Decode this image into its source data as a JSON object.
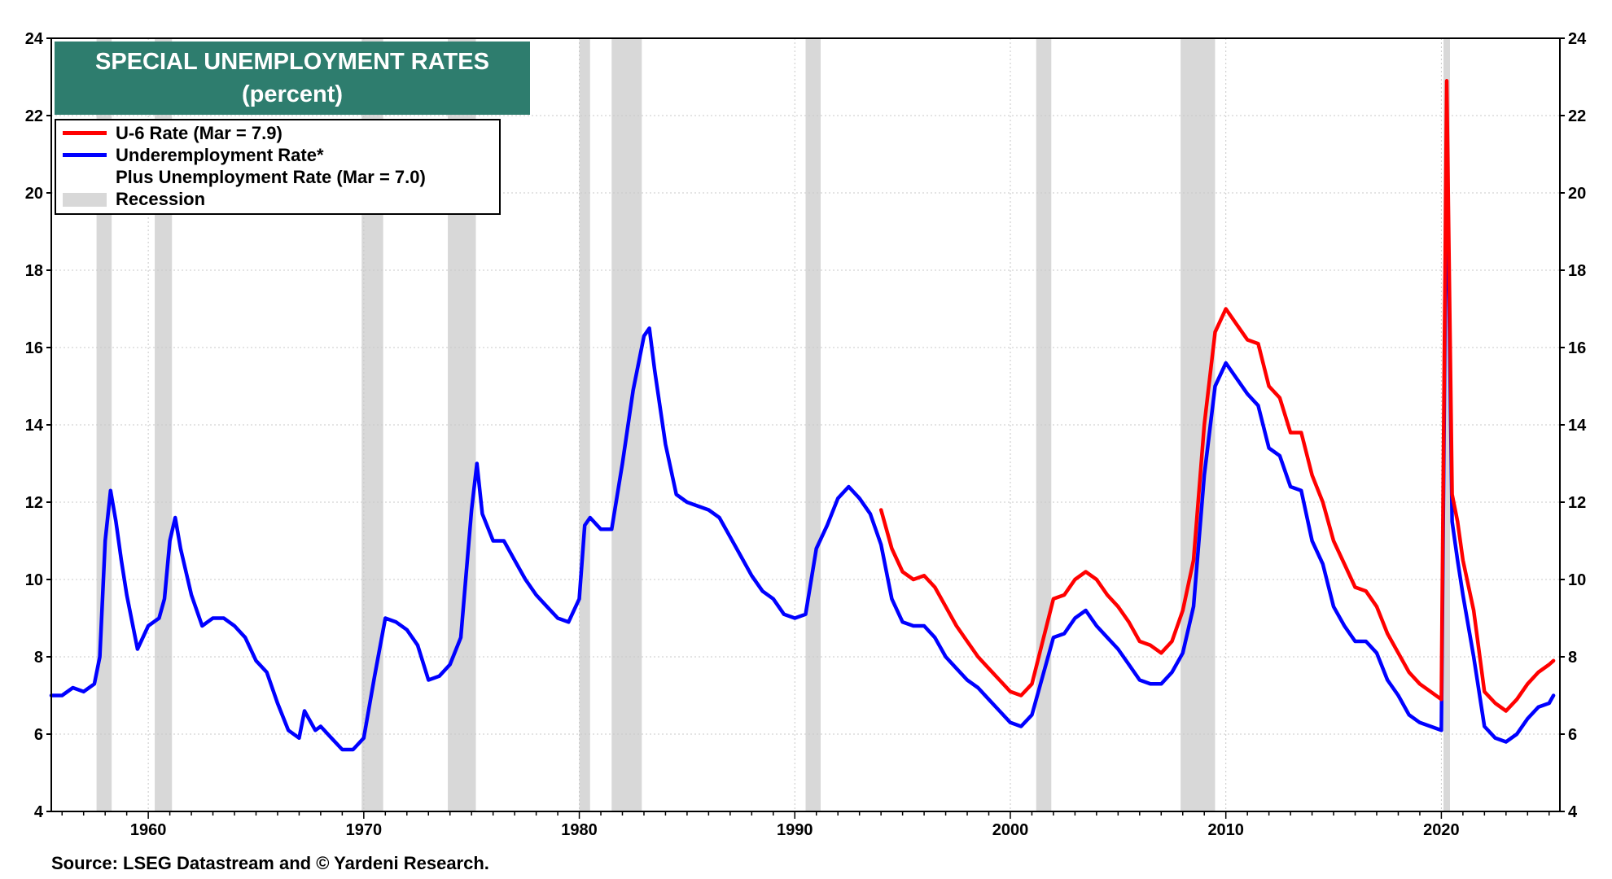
{
  "chart_data": {
    "type": "line",
    "title": "SPECIAL UNEMPLOYMENT RATES",
    "subtitle": "(percent)",
    "ylim": [
      4,
      24
    ],
    "xlim": [
      1955.5,
      2025.5
    ],
    "y_ticks": [
      "4",
      "6",
      "8",
      "10",
      "12",
      "14",
      "16",
      "18",
      "20",
      "22",
      "24"
    ],
    "x_ticks": [
      "1960",
      "1970",
      "1980",
      "1990",
      "2000",
      "2010",
      "2020"
    ],
    "grid": true,
    "legend_position": "top-left",
    "series": [
      {
        "name": "U-6 Rate (Mar = 7.9)",
        "color": "#ff0000",
        "points": [
          [
            1994.0,
            11.8
          ],
          [
            1994.5,
            10.8
          ],
          [
            1995.0,
            10.2
          ],
          [
            1995.5,
            10.0
          ],
          [
            1996.0,
            10.1
          ],
          [
            1996.5,
            9.8
          ],
          [
            1997.0,
            9.3
          ],
          [
            1997.5,
            8.8
          ],
          [
            1998.0,
            8.4
          ],
          [
            1998.5,
            8.0
          ],
          [
            1999.0,
            7.7
          ],
          [
            1999.5,
            7.4
          ],
          [
            2000.0,
            7.1
          ],
          [
            2000.5,
            7.0
          ],
          [
            2001.0,
            7.3
          ],
          [
            2001.5,
            8.4
          ],
          [
            2002.0,
            9.5
          ],
          [
            2002.5,
            9.6
          ],
          [
            2003.0,
            10.0
          ],
          [
            2003.5,
            10.2
          ],
          [
            2004.0,
            10.0
          ],
          [
            2004.5,
            9.6
          ],
          [
            2005.0,
            9.3
          ],
          [
            2005.5,
            8.9
          ],
          [
            2006.0,
            8.4
          ],
          [
            2006.5,
            8.3
          ],
          [
            2007.0,
            8.1
          ],
          [
            2007.5,
            8.4
          ],
          [
            2008.0,
            9.2
          ],
          [
            2008.5,
            10.5
          ],
          [
            2009.0,
            14.0
          ],
          [
            2009.5,
            16.4
          ],
          [
            2010.0,
            17.0
          ],
          [
            2010.5,
            16.6
          ],
          [
            2011.0,
            16.2
          ],
          [
            2011.5,
            16.1
          ],
          [
            2012.0,
            15.0
          ],
          [
            2012.5,
            14.7
          ],
          [
            2013.0,
            13.8
          ],
          [
            2013.5,
            13.8
          ],
          [
            2014.0,
            12.7
          ],
          [
            2014.5,
            12.0
          ],
          [
            2015.0,
            11.0
          ],
          [
            2015.5,
            10.4
          ],
          [
            2016.0,
            9.8
          ],
          [
            2016.5,
            9.7
          ],
          [
            2017.0,
            9.3
          ],
          [
            2017.5,
            8.6
          ],
          [
            2018.0,
            8.1
          ],
          [
            2018.5,
            7.6
          ],
          [
            2019.0,
            7.3
          ],
          [
            2019.5,
            7.1
          ],
          [
            2020.0,
            6.9
          ],
          [
            2020.25,
            22.9
          ],
          [
            2020.5,
            12.2
          ],
          [
            2020.75,
            11.5
          ],
          [
            2021.0,
            10.5
          ],
          [
            2021.5,
            9.2
          ],
          [
            2022.0,
            7.1
          ],
          [
            2022.5,
            6.8
          ],
          [
            2023.0,
            6.6
          ],
          [
            2023.5,
            6.9
          ],
          [
            2024.0,
            7.3
          ],
          [
            2024.5,
            7.6
          ],
          [
            2025.0,
            7.8
          ],
          [
            2025.2,
            7.9
          ]
        ]
      },
      {
        "name": "Underemployment Rate*",
        "color": "#0000ff",
        "points": [
          [
            1955.5,
            7.0
          ],
          [
            1956.0,
            7.0
          ],
          [
            1956.5,
            7.2
          ],
          [
            1957.0,
            7.1
          ],
          [
            1957.5,
            7.3
          ],
          [
            1957.75,
            8.0
          ],
          [
            1958.0,
            11.0
          ],
          [
            1958.25,
            12.3
          ],
          [
            1958.5,
            11.5
          ],
          [
            1958.75,
            10.5
          ],
          [
            1959.0,
            9.6
          ],
          [
            1959.5,
            8.2
          ],
          [
            1960.0,
            8.8
          ],
          [
            1960.5,
            9.0
          ],
          [
            1960.75,
            9.5
          ],
          [
            1961.0,
            11.0
          ],
          [
            1961.25,
            11.6
          ],
          [
            1961.5,
            10.8
          ],
          [
            1962.0,
            9.6
          ],
          [
            1962.5,
            8.8
          ],
          [
            1963.0,
            9.0
          ],
          [
            1963.5,
            9.0
          ],
          [
            1964.0,
            8.8
          ],
          [
            1964.5,
            8.5
          ],
          [
            1965.0,
            7.9
          ],
          [
            1965.5,
            7.6
          ],
          [
            1966.0,
            6.8
          ],
          [
            1966.5,
            6.1
          ],
          [
            1967.0,
            5.9
          ],
          [
            1967.25,
            6.6
          ],
          [
            1967.75,
            6.1
          ],
          [
            1968.0,
            6.2
          ],
          [
            1968.5,
            5.9
          ],
          [
            1969.0,
            5.6
          ],
          [
            1969.5,
            5.6
          ],
          [
            1970.0,
            5.9
          ],
          [
            1970.5,
            7.5
          ],
          [
            1971.0,
            9.0
          ],
          [
            1971.5,
            8.9
          ],
          [
            1972.0,
            8.7
          ],
          [
            1972.5,
            8.3
          ],
          [
            1973.0,
            7.4
          ],
          [
            1973.5,
            7.5
          ],
          [
            1974.0,
            7.8
          ],
          [
            1974.5,
            8.5
          ],
          [
            1975.0,
            11.8
          ],
          [
            1975.25,
            13.0
          ],
          [
            1975.5,
            11.7
          ],
          [
            1976.0,
            11.0
          ],
          [
            1976.5,
            11.0
          ],
          [
            1977.0,
            10.5
          ],
          [
            1977.5,
            10.0
          ],
          [
            1978.0,
            9.6
          ],
          [
            1978.5,
            9.3
          ],
          [
            1979.0,
            9.0
          ],
          [
            1979.5,
            8.9
          ],
          [
            1980.0,
            9.5
          ],
          [
            1980.25,
            11.4
          ],
          [
            1980.5,
            11.6
          ],
          [
            1981.0,
            11.3
          ],
          [
            1981.5,
            11.3
          ],
          [
            1982.0,
            13.0
          ],
          [
            1982.5,
            14.9
          ],
          [
            1983.0,
            16.3
          ],
          [
            1983.25,
            16.5
          ],
          [
            1983.5,
            15.4
          ],
          [
            1984.0,
            13.5
          ],
          [
            1984.5,
            12.2
          ],
          [
            1985.0,
            12.0
          ],
          [
            1985.5,
            11.9
          ],
          [
            1986.0,
            11.8
          ],
          [
            1986.5,
            11.6
          ],
          [
            1987.0,
            11.1
          ],
          [
            1987.5,
            10.6
          ],
          [
            1988.0,
            10.1
          ],
          [
            1988.5,
            9.7
          ],
          [
            1989.0,
            9.5
          ],
          [
            1989.5,
            9.1
          ],
          [
            1990.0,
            9.0
          ],
          [
            1990.5,
            9.1
          ],
          [
            1991.0,
            10.8
          ],
          [
            1991.5,
            11.4
          ],
          [
            1992.0,
            12.1
          ],
          [
            1992.5,
            12.4
          ],
          [
            1993.0,
            12.1
          ],
          [
            1993.5,
            11.7
          ],
          [
            1994.0,
            10.9
          ],
          [
            1994.5,
            9.5
          ],
          [
            1995.0,
            8.9
          ],
          [
            1995.5,
            8.8
          ],
          [
            1996.0,
            8.8
          ],
          [
            1996.5,
            8.5
          ],
          [
            1997.0,
            8.0
          ],
          [
            1997.5,
            7.7
          ],
          [
            1998.0,
            7.4
          ],
          [
            1998.5,
            7.2
          ],
          [
            1999.0,
            6.9
          ],
          [
            1999.5,
            6.6
          ],
          [
            2000.0,
            6.3
          ],
          [
            2000.5,
            6.2
          ],
          [
            2001.0,
            6.5
          ],
          [
            2001.5,
            7.5
          ],
          [
            2002.0,
            8.5
          ],
          [
            2002.5,
            8.6
          ],
          [
            2003.0,
            9.0
          ],
          [
            2003.5,
            9.2
          ],
          [
            2004.0,
            8.8
          ],
          [
            2004.5,
            8.5
          ],
          [
            2005.0,
            8.2
          ],
          [
            2005.5,
            7.8
          ],
          [
            2006.0,
            7.4
          ],
          [
            2006.5,
            7.3
          ],
          [
            2007.0,
            7.3
          ],
          [
            2007.5,
            7.6
          ],
          [
            2008.0,
            8.1
          ],
          [
            2008.5,
            9.3
          ],
          [
            2009.0,
            12.7
          ],
          [
            2009.5,
            15.0
          ],
          [
            2010.0,
            15.6
          ],
          [
            2010.5,
            15.2
          ],
          [
            2011.0,
            14.8
          ],
          [
            2011.5,
            14.5
          ],
          [
            2012.0,
            13.4
          ],
          [
            2012.5,
            13.2
          ],
          [
            2013.0,
            12.4
          ],
          [
            2013.5,
            12.3
          ],
          [
            2014.0,
            11.0
          ],
          [
            2014.5,
            10.4
          ],
          [
            2015.0,
            9.3
          ],
          [
            2015.5,
            8.8
          ],
          [
            2016.0,
            8.4
          ],
          [
            2016.5,
            8.4
          ],
          [
            2017.0,
            8.1
          ],
          [
            2017.5,
            7.4
          ],
          [
            2018.0,
            7.0
          ],
          [
            2018.5,
            6.5
          ],
          [
            2019.0,
            6.3
          ],
          [
            2019.5,
            6.2
          ],
          [
            2020.0,
            6.1
          ],
          [
            2020.25,
            21.7
          ],
          [
            2020.5,
            11.5
          ],
          [
            2020.75,
            10.5
          ],
          [
            2021.0,
            9.6
          ],
          [
            2021.5,
            8.0
          ],
          [
            2022.0,
            6.2
          ],
          [
            2022.5,
            5.9
          ],
          [
            2023.0,
            5.8
          ],
          [
            2023.5,
            6.0
          ],
          [
            2024.0,
            6.4
          ],
          [
            2024.5,
            6.7
          ],
          [
            2025.0,
            6.8
          ],
          [
            2025.2,
            7.0
          ]
        ]
      }
    ],
    "recessions": [
      [
        1957.6,
        1958.3
      ],
      [
        1960.3,
        1961.1
      ],
      [
        1969.9,
        1970.9
      ],
      [
        1973.9,
        1975.2
      ],
      [
        1980.0,
        1980.5
      ],
      [
        1981.5,
        1982.9
      ],
      [
        1990.5,
        1991.2
      ],
      [
        2001.2,
        2001.9
      ],
      [
        2007.9,
        2009.5
      ],
      [
        2020.1,
        2020.4
      ]
    ]
  },
  "legend": {
    "items": [
      {
        "label": "U-6 Rate (Mar = 7.9)",
        "color": "#ff0000"
      },
      {
        "label": "Underemployment Rate*",
        "color": "#0000ff"
      },
      {
        "label": "Plus Unemployment Rate (Mar = 7.0)",
        "color": "#ffffff"
      },
      {
        "label": "Recession",
        "color": "#d8d8d8"
      }
    ]
  },
  "header": {
    "title": "SPECIAL UNEMPLOYMENT RATES",
    "subtitle": "(percent)",
    "background": "#2e7d6e"
  },
  "footer": {
    "source": "Source: LSEG Datastream and © Yardeni Research."
  }
}
